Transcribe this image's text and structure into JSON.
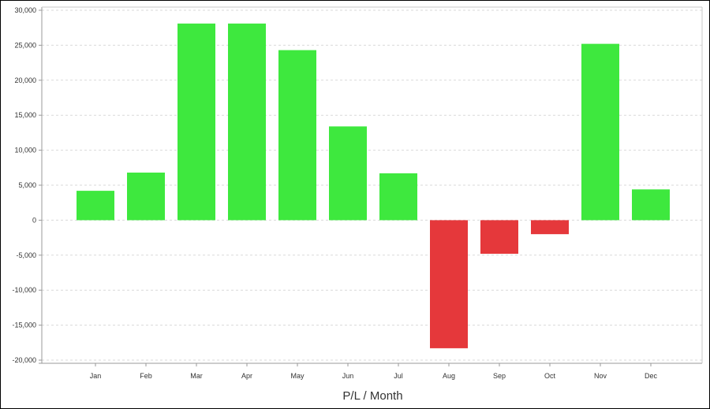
{
  "chart_data": {
    "type": "bar",
    "title": "",
    "xlabel": "P/L / Month",
    "ylabel": "",
    "categories": [
      "Jan",
      "Feb",
      "Mar",
      "Apr",
      "May",
      "Jun",
      "Jul",
      "Aug",
      "Sep",
      "Oct",
      "Nov",
      "Dec"
    ],
    "values": [
      4200,
      6800,
      28100,
      28100,
      24300,
      13400,
      6700,
      -18300,
      -4800,
      -2000,
      25200,
      4400
    ],
    "ylim": [
      -20000,
      30000
    ],
    "yticks": [
      30000,
      25000,
      20000,
      15000,
      10000,
      5000,
      0,
      -5000,
      -10000,
      -15000,
      -20000
    ],
    "ytick_labels": [
      "30,000",
      "25,000",
      "20,000",
      "15,000",
      "10,000",
      "5,000",
      "0",
      "-5,000",
      "-10,000",
      "-15,000",
      "-20,000"
    ],
    "grid": true,
    "legend": "none",
    "colors": {
      "positive": "#3ee83e",
      "negative": "#e5383b",
      "grid": "#d9d9d9",
      "axis": "#999999"
    }
  }
}
